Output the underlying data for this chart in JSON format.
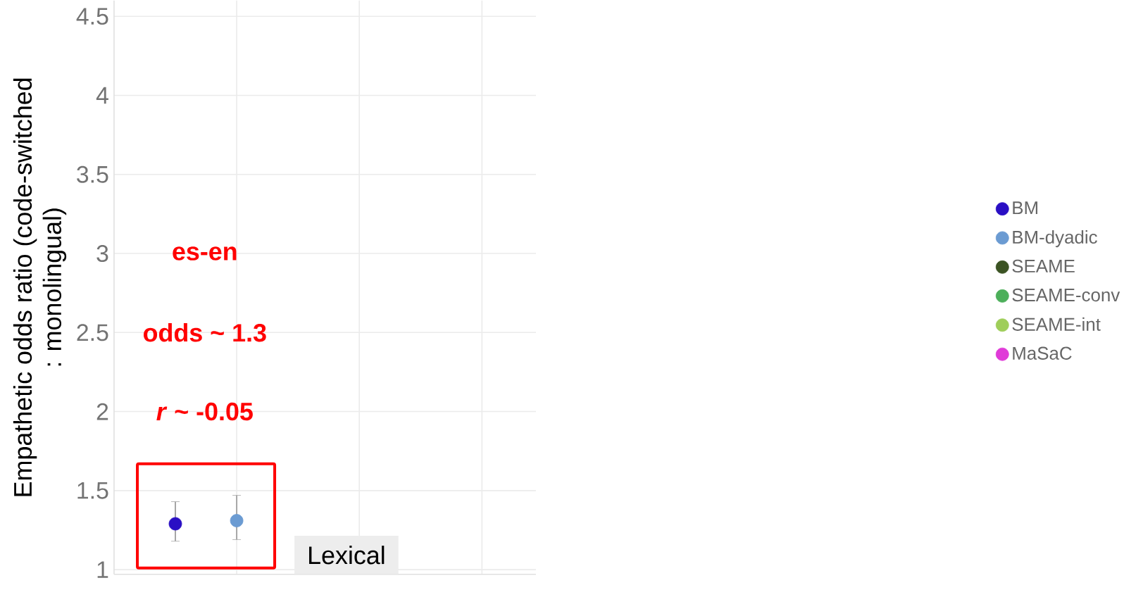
{
  "chart_data": {
    "type": "scatter",
    "ylabel": "Empathetic odds ratio (code-switched : monolingual)",
    "categories": [
      null,
      null,
      null,
      null,
      null,
      null
    ],
    "ylim": [
      0.97,
      4.6
    ],
    "yticks": [
      1,
      1.5,
      2,
      2.5,
      3,
      3.5,
      4,
      4.5
    ],
    "grid": true,
    "marker": "circle",
    "legend": "right",
    "series": [
      {
        "name": "BM",
        "color": "#2a0fc4",
        "values": [
          1.29,
          null,
          null,
          null,
          null,
          null
        ],
        "errors": [
          [
            1.18,
            1.43
          ],
          null,
          null,
          null,
          null,
          null
        ]
      },
      {
        "name": "BM-dyadic",
        "color": "#6b9bd2",
        "values": [
          null,
          1.31,
          null,
          null,
          null,
          null
        ],
        "errors": [
          null,
          [
            1.19,
            1.47
          ],
          null,
          null,
          null,
          null
        ]
      },
      {
        "name": "SEAME",
        "color": "#3b5323",
        "values": [
          null,
          null,
          null,
          null,
          null,
          null
        ]
      },
      {
        "name": "SEAME-conv",
        "color": "#4caf5a",
        "values": [
          null,
          null,
          null,
          null,
          null,
          null
        ]
      },
      {
        "name": "SEAME-int",
        "color": "#9fce5a",
        "values": [
          null,
          null,
          null,
          null,
          null,
          null
        ]
      },
      {
        "name": "MaSaC",
        "color": "#e03ad8",
        "values": [
          null,
          null,
          null,
          null,
          null,
          null
        ]
      }
    ],
    "annotations": [
      "es-en",
      "odds  ~ 1.3",
      "*r* ~ -0.05",
      "Lexical"
    ]
  }
}
